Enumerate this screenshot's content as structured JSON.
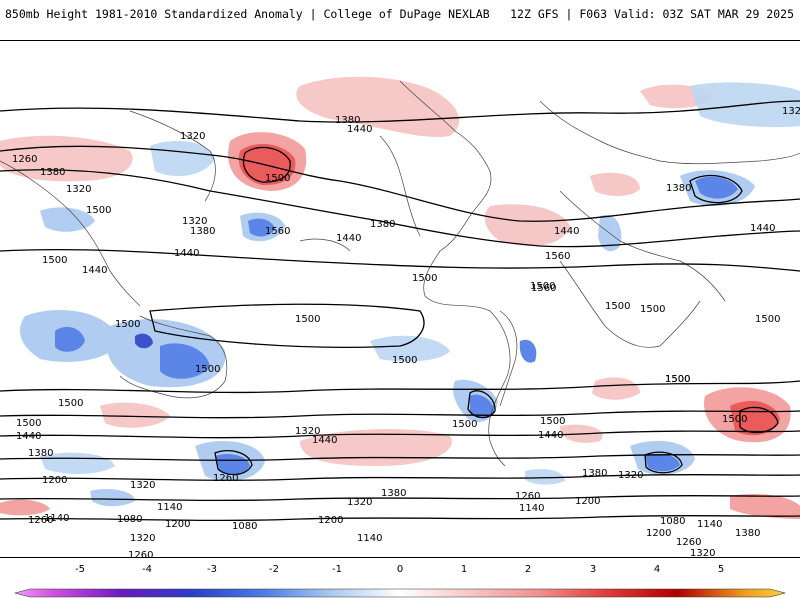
{
  "header": {
    "title": "850mb Height 1981-2010 Standardized Anomaly | College of DuPage NEXLAB",
    "valid": "12Z GFS | F063 Valid: 03Z SAT MAR 29 2025"
  },
  "colorbar": {
    "ticks": [
      "-5",
      "-4",
      "-3",
      "-2",
      "-1",
      "0",
      "1",
      "2",
      "3",
      "4",
      "5"
    ],
    "colors": [
      "#e06ee8",
      "#8a1ac8",
      "#2a3fc8",
      "#4a7ae6",
      "#a8c8f0",
      "#ffffff",
      "#f8c6c6",
      "#f0908e",
      "#e03a3a",
      "#b00000",
      "#f0a020"
    ]
  },
  "contour_labels": [
    "1320",
    "1380",
    "1440",
    "1260",
    "1320",
    "1500",
    "1380",
    "1320",
    "1320",
    "1500",
    "1440",
    "1500",
    "1560",
    "1380",
    "1440",
    "1500",
    "1440",
    "1500",
    "1560",
    "1500",
    "1500",
    "1500",
    "1500",
    "1500",
    "1500",
    "1560",
    "1440",
    "1380",
    "1500",
    "1440",
    "1500",
    "1380",
    "1200",
    "1320",
    "1260",
    "1140",
    "1080",
    "1200",
    "1140",
    "1080",
    "1200",
    "1320",
    "1260",
    "1140",
    "1200",
    "1140",
    "1260",
    "1380",
    "1320",
    "1260",
    "1200",
    "1140",
    "1080",
    "1140",
    "1200",
    "1260",
    "1380",
    "1320",
    "1380",
    "1260",
    "1440",
    "1320",
    "1500",
    "1500",
    "1440",
    "1380",
    "1320",
    "1500",
    "1500",
    "1500",
    "1440",
    "1500"
  ]
}
